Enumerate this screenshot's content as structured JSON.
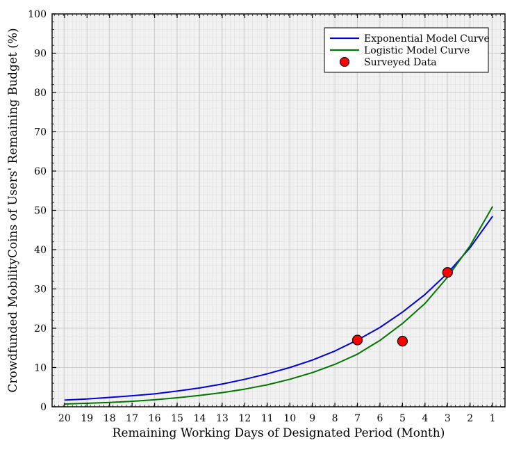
{
  "chart_data": {
    "type": "line",
    "xlabel": "Remaining Working Days of Designated Period (Month)",
    "ylabel": "Crowdfunded MobilityCoins of Users' Remaining Budget (%)",
    "x": [
      20,
      19,
      18,
      17,
      16,
      15,
      14,
      13,
      12,
      11,
      10,
      9,
      8,
      7,
      6,
      5,
      4,
      3,
      2,
      1
    ],
    "x_reversed": true,
    "xlim": [
      20,
      1
    ],
    "ylim": [
      0,
      100
    ],
    "yticks": [
      0,
      10,
      20,
      30,
      40,
      50,
      60,
      70,
      80,
      90,
      100
    ],
    "grid": true,
    "legend_position": "top-right",
    "series": [
      {
        "name": "Exponential Model Curve",
        "kind": "line",
        "color": "#0000dd",
        "values": [
          1.7,
          2.0,
          2.4,
          2.8,
          3.3,
          4.0,
          4.8,
          5.8,
          7.0,
          8.4,
          10.0,
          11.9,
          14.2,
          17.0,
          20.2,
          24.1,
          28.6,
          34.0,
          40.5,
          48.5
        ]
      },
      {
        "name": "Logistic Model Curve",
        "kind": "line",
        "color": "#007700",
        "values": [
          0.7,
          0.9,
          1.1,
          1.4,
          1.8,
          2.3,
          2.9,
          3.6,
          4.5,
          5.6,
          7.0,
          8.7,
          10.8,
          13.4,
          16.9,
          21.2,
          26.3,
          33.0,
          41.0,
          51.0
        ]
      },
      {
        "name": "Surveyed Data",
        "kind": "scatter",
        "color": "#ff0000",
        "points": [
          {
            "x": 7,
            "y": 17.0
          },
          {
            "x": 5,
            "y": 16.7
          },
          {
            "x": 3,
            "y": 34.2
          }
        ]
      }
    ]
  }
}
